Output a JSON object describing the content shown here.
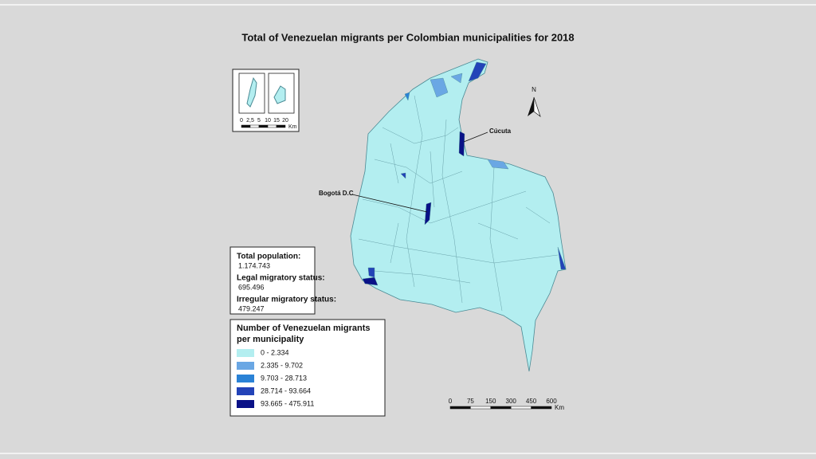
{
  "title": "Total of Venezuelan migrants per Colombian municipalities for 2018",
  "north": "N",
  "places": [
    "Cúcuta",
    "Bogotá D.C"
  ],
  "inset_scale": {
    "ticks": [
      "0",
      "2,5",
      "5",
      "10",
      "15",
      "20"
    ],
    "unit": "Km"
  },
  "stats": [
    {
      "label": "Total population:",
      "value": "1.174.743"
    },
    {
      "label": "Legal migratory status:",
      "value": "695.496"
    },
    {
      "label": "Irregular migratory status:",
      "value": "479.247"
    }
  ],
  "legend": {
    "title": "Number of Venezuelan migrants per municipality",
    "items": [
      {
        "label": "0 - 2.334",
        "color": "#b3eef0"
      },
      {
        "label": "2.335 - 9.702",
        "color": "#6aa7e4"
      },
      {
        "label": "9.703 - 28.713",
        "color": "#2a82d6"
      },
      {
        "label": "28.714 - 93.664",
        "color": "#2343b8"
      },
      {
        "label": "93.665 - 475.911",
        "color": "#0a1187"
      }
    ]
  },
  "scale": {
    "ticks": [
      "0",
      "75",
      "150",
      "300",
      "450",
      "600"
    ],
    "unit": "Km"
  }
}
